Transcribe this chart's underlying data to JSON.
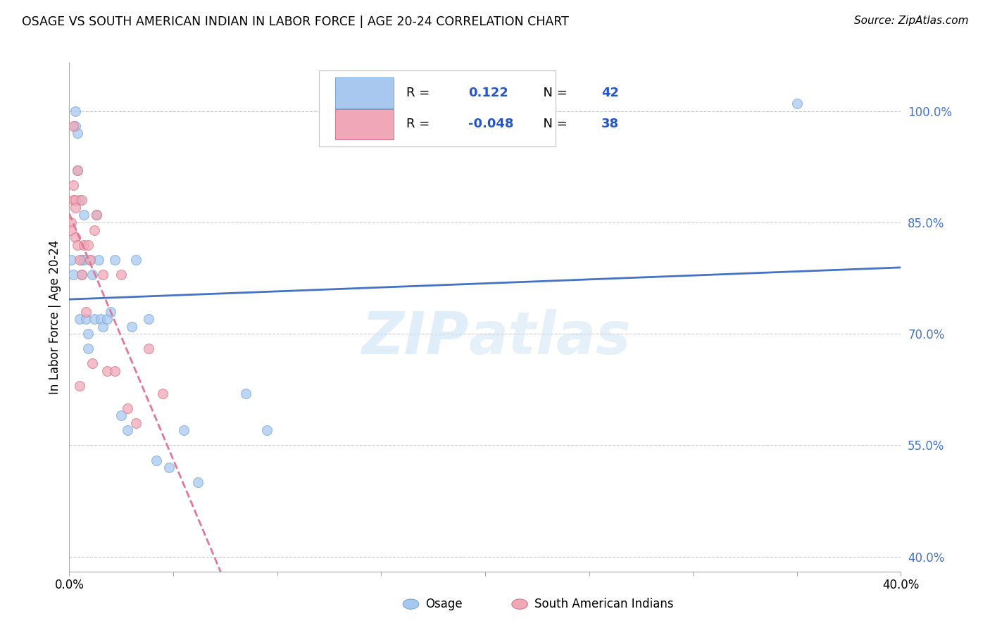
{
  "title": "OSAGE VS SOUTH AMERICAN INDIAN IN LABOR FORCE | AGE 20-24 CORRELATION CHART",
  "source": "Source: ZipAtlas.com",
  "ylabel": "In Labor Force | Age 20-24",
  "xmin": 0.0,
  "xmax": 0.4,
  "ymin": 0.38,
  "ymax": 1.065,
  "ytick_labels": [
    "40.0%",
    "55.0%",
    "70.0%",
    "85.0%",
    "100.0%"
  ],
  "ytick_values": [
    0.4,
    0.55,
    0.7,
    0.85,
    1.0
  ],
  "xtick_values": [
    0.0,
    0.05,
    0.1,
    0.15,
    0.2,
    0.25,
    0.3,
    0.35,
    0.4
  ],
  "osage_x": [
    0.001,
    0.002,
    0.003,
    0.003,
    0.004,
    0.004,
    0.005,
    0.005,
    0.006,
    0.006,
    0.007,
    0.007,
    0.008,
    0.009,
    0.009,
    0.01,
    0.011,
    0.012,
    0.013,
    0.014,
    0.015,
    0.016,
    0.018,
    0.02,
    0.022,
    0.025,
    0.028,
    0.03,
    0.032,
    0.038,
    0.042,
    0.048,
    0.055,
    0.062,
    0.085,
    0.095,
    0.35
  ],
  "osage_y": [
    0.8,
    0.78,
    1.0,
    0.98,
    0.97,
    0.92,
    0.88,
    0.72,
    0.8,
    0.78,
    0.86,
    0.8,
    0.72,
    0.7,
    0.68,
    0.8,
    0.78,
    0.72,
    0.86,
    0.8,
    0.72,
    0.71,
    0.72,
    0.73,
    0.8,
    0.59,
    0.57,
    0.71,
    0.8,
    0.72,
    0.53,
    0.52,
    0.57,
    0.5,
    0.62,
    0.57,
    1.01
  ],
  "sai_x": [
    0.001,
    0.001,
    0.002,
    0.002,
    0.002,
    0.003,
    0.003,
    0.003,
    0.004,
    0.004,
    0.005,
    0.005,
    0.006,
    0.006,
    0.007,
    0.008,
    0.009,
    0.01,
    0.011,
    0.012,
    0.013,
    0.016,
    0.018,
    0.022,
    0.025,
    0.028,
    0.032,
    0.038,
    0.045
  ],
  "sai_y": [
    0.85,
    0.84,
    0.98,
    0.9,
    0.88,
    0.88,
    0.87,
    0.83,
    0.92,
    0.82,
    0.8,
    0.63,
    0.88,
    0.78,
    0.82,
    0.73,
    0.82,
    0.8,
    0.66,
    0.84,
    0.86,
    0.78,
    0.65,
    0.65,
    0.78,
    0.6,
    0.58,
    0.68,
    0.62
  ],
  "osage_color": "#a8c8f0",
  "osage_edge_color": "#7aaad4",
  "sai_color": "#f0a8b8",
  "sai_edge_color": "#d47a8a",
  "dot_size": 100,
  "alpha": 0.75,
  "blue_line_color": "#4472c4",
  "pink_line_color": "#e07898",
  "osage_R": "0.122",
  "osage_N": "42",
  "sai_R": "-0.048",
  "sai_N": "38",
  "watermark_zip": "ZIP",
  "watermark_atlas": "atlas",
  "grid_color": "#cccccc",
  "background_color": "#ffffff"
}
